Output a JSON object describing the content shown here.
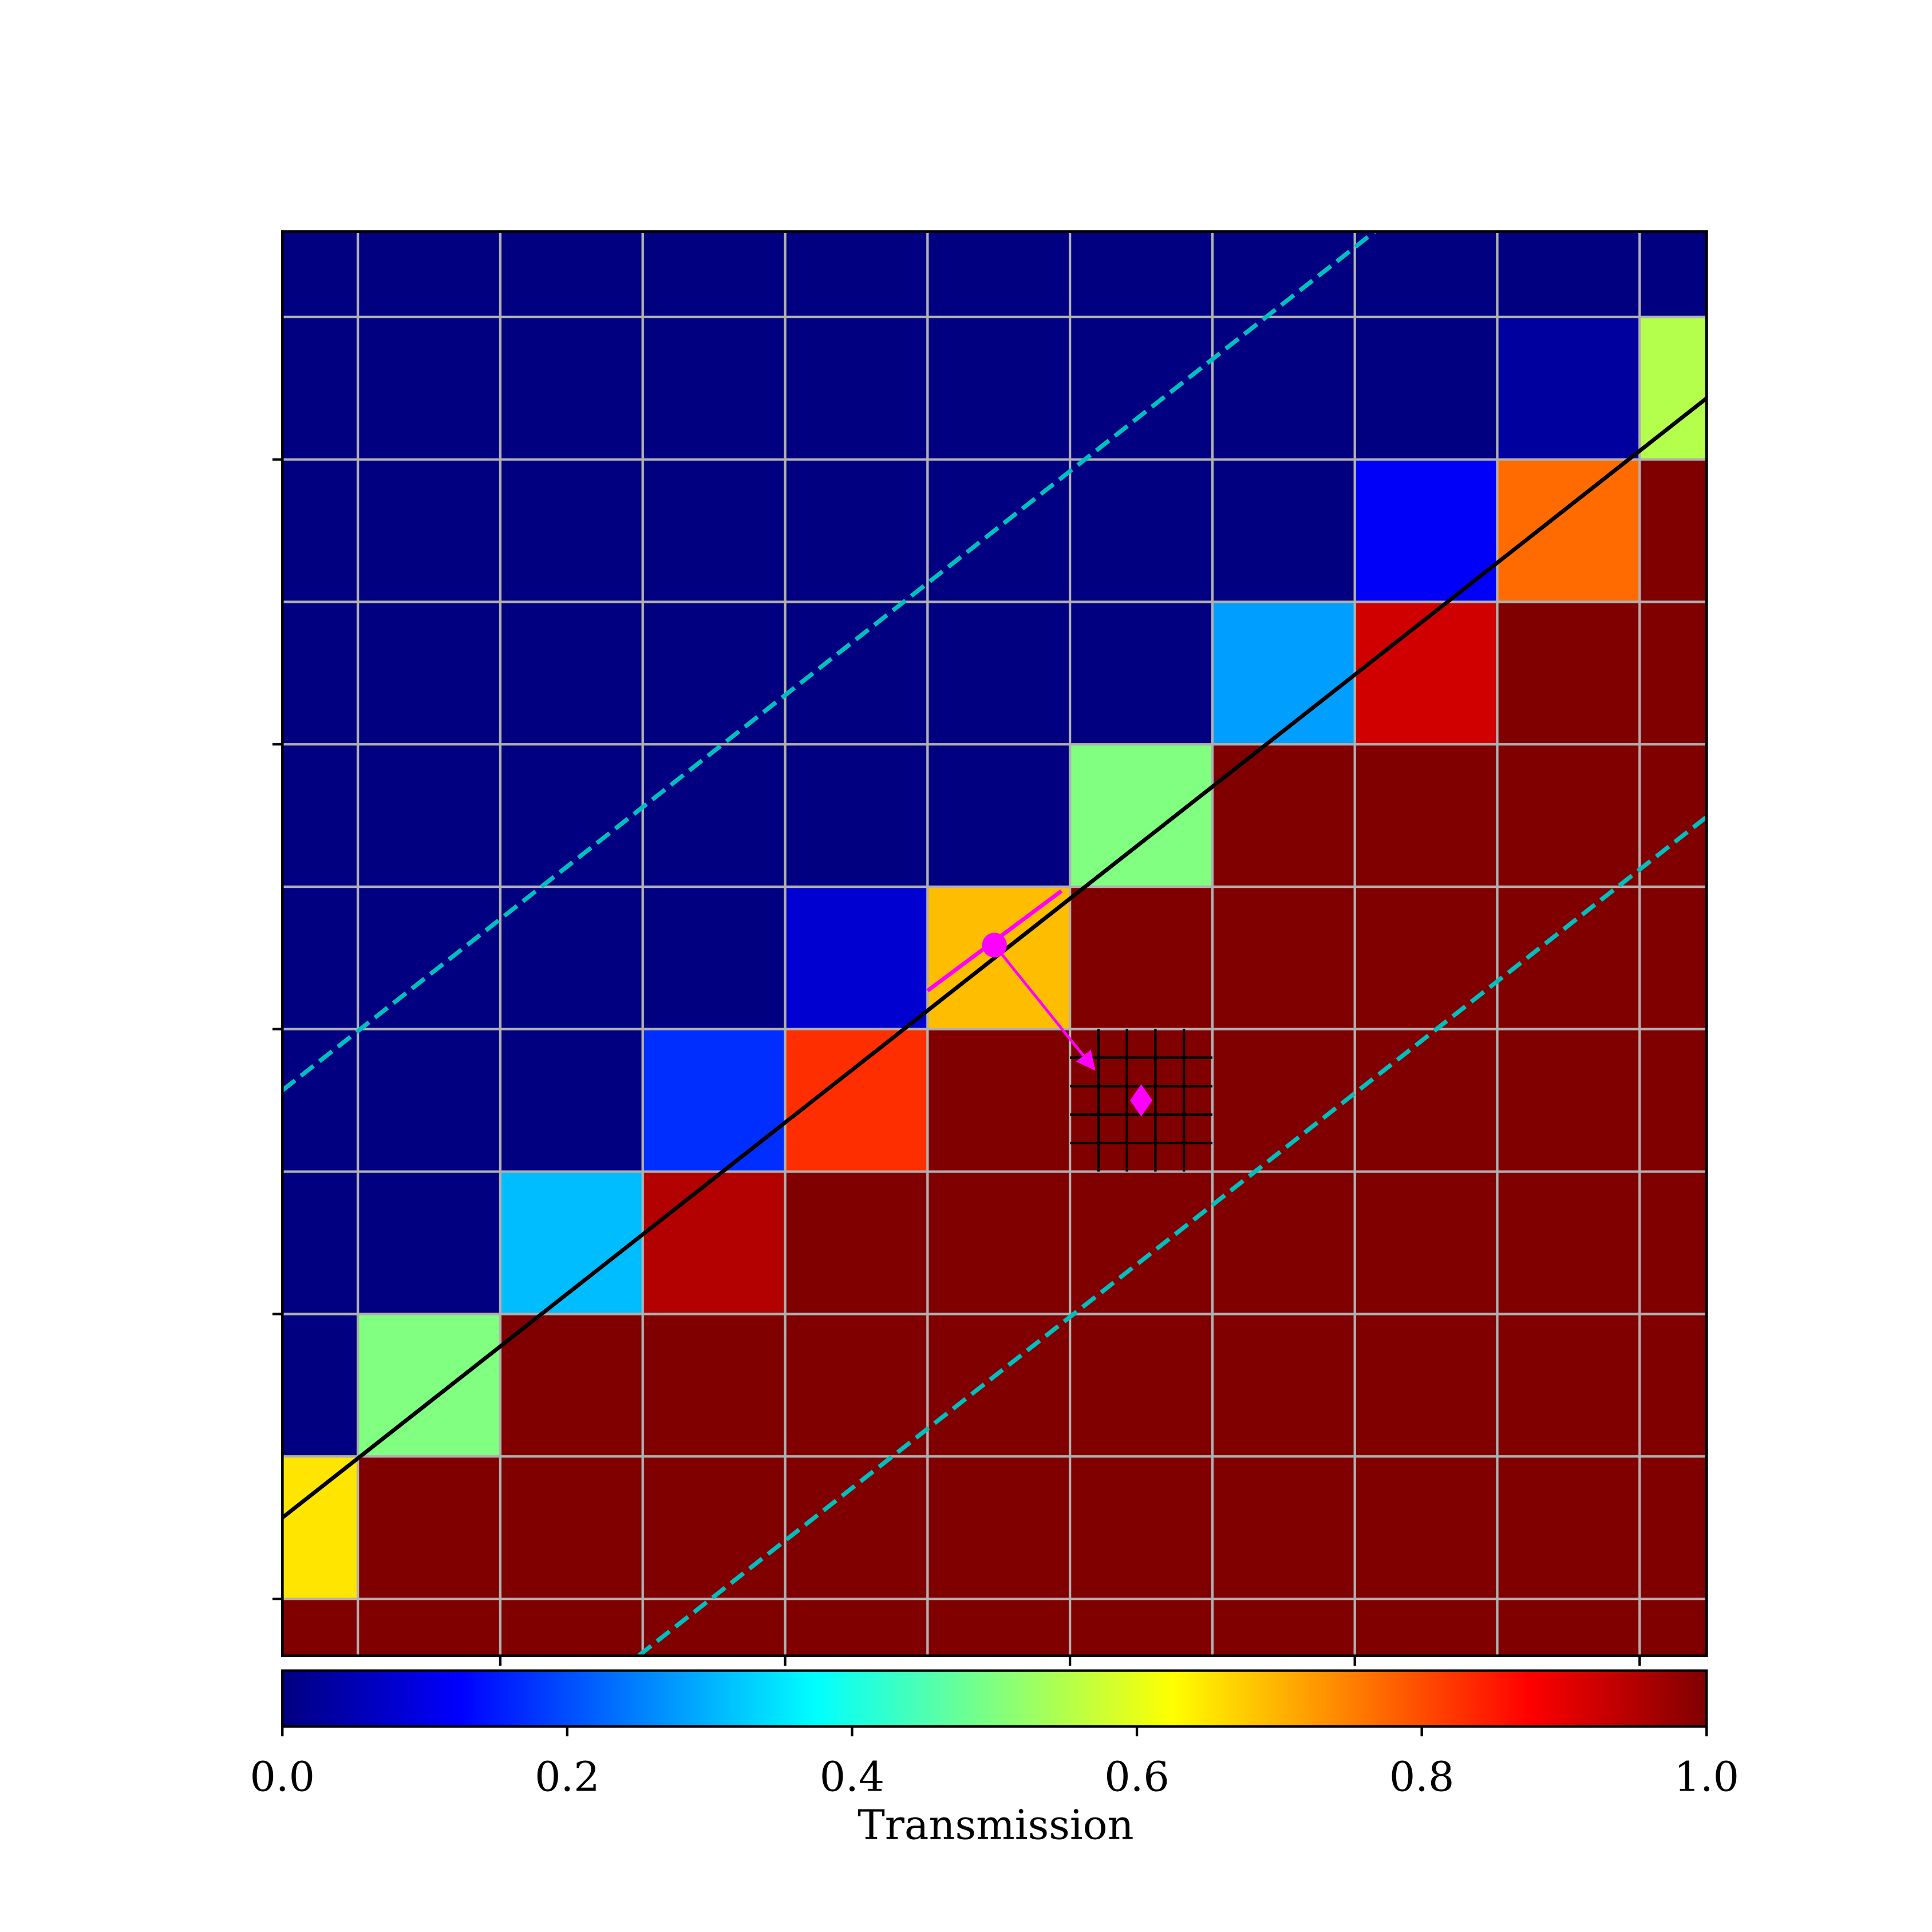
{
  "chart_data": {
    "type": "heatmap",
    "colormap": "jet",
    "x_edges": [
      0.47,
      1,
      2,
      3,
      4,
      5,
      6,
      7,
      8,
      9,
      10,
      10.47
    ],
    "y_edges": [
      0.6,
      1,
      2,
      3,
      4,
      5,
      6,
      7,
      8,
      9,
      10,
      10.6
    ],
    "values": [
      [
        1,
        1,
        1,
        1,
        1,
        1,
        1,
        1,
        1,
        1,
        1
      ],
      [
        0.65,
        1,
        1,
        1,
        1,
        1,
        1,
        1,
        1,
        1,
        1
      ],
      [
        0,
        0.5,
        1,
        1,
        1,
        1,
        1,
        1,
        1,
        1,
        1
      ],
      [
        0,
        0,
        0.31,
        0.95,
        1,
        1,
        1,
        1,
        1,
        1,
        1
      ],
      [
        0,
        0,
        0,
        0.17,
        0.83,
        1,
        1,
        1,
        1,
        1,
        1
      ],
      [
        0,
        0,
        0,
        0,
        0.08,
        0.69,
        1,
        1,
        1,
        1,
        1
      ],
      [
        0,
        0,
        0,
        0,
        0,
        0,
        0.5,
        1,
        1,
        1,
        1
      ],
      [
        0,
        0,
        0,
        0,
        0,
        0,
        0,
        0.28,
        0.92,
        1,
        1
      ],
      [
        0,
        0,
        0,
        0,
        0,
        0,
        0,
        0,
        0.12,
        0.77,
        1
      ],
      [
        0,
        0,
        0,
        0,
        0,
        0,
        0,
        0,
        0,
        0.03,
        0.55
      ],
      [
        0,
        0,
        0,
        0,
        0,
        0,
        0,
        0,
        0,
        0,
        0
      ]
    ],
    "xlim": [
      0.47,
      10.47
    ],
    "ylim": [
      0.6,
      10.6
    ],
    "xticks": [
      2,
      4,
      6,
      8,
      10
    ],
    "yticks": [
      1,
      3,
      5,
      7,
      9
    ],
    "grid": true,
    "lines": [
      {
        "x": [
          0.47,
          10.47
        ],
        "y": [
          1.57,
          9.43
        ],
        "color": "#000000",
        "dashed": false
      },
      {
        "x": [
          0.47,
          8.14
        ],
        "y": [
          4.57,
          10.6
        ],
        "color": "#00bfbf",
        "dashed": true
      },
      {
        "x": [
          2.97,
          10.47
        ],
        "y": [
          0.6,
          6.49
        ],
        "color": "#00bfbf",
        "dashed": true
      },
      {
        "x": [
          5.0,
          5.94
        ],
        "y": [
          5.27,
          5.97
        ],
        "color": "#ff00ff",
        "dashed": false
      }
    ],
    "point": {
      "x": 5.47,
      "y": 5.59,
      "color": "#ff00ff"
    },
    "arrow": {
      "x": [
        5.47,
        6.17
      ],
      "y": [
        5.59,
        4.72
      ],
      "color": "#ff00ff"
    },
    "diamond": {
      "x": 6.5,
      "y": 4.5,
      "color": "#ff00ff"
    },
    "hatch": {
      "x": [
        6,
        7
      ],
      "y": [
        4,
        5
      ]
    },
    "colorbar": {
      "label": "Transmission",
      "lim": [
        0,
        1
      ],
      "ticks": [
        {
          "value": 0,
          "label": "0.0"
        },
        0.2,
        0.4,
        0.6,
        0.8,
        {
          "value": 1,
          "label": "1.0"
        }
      ]
    }
  }
}
